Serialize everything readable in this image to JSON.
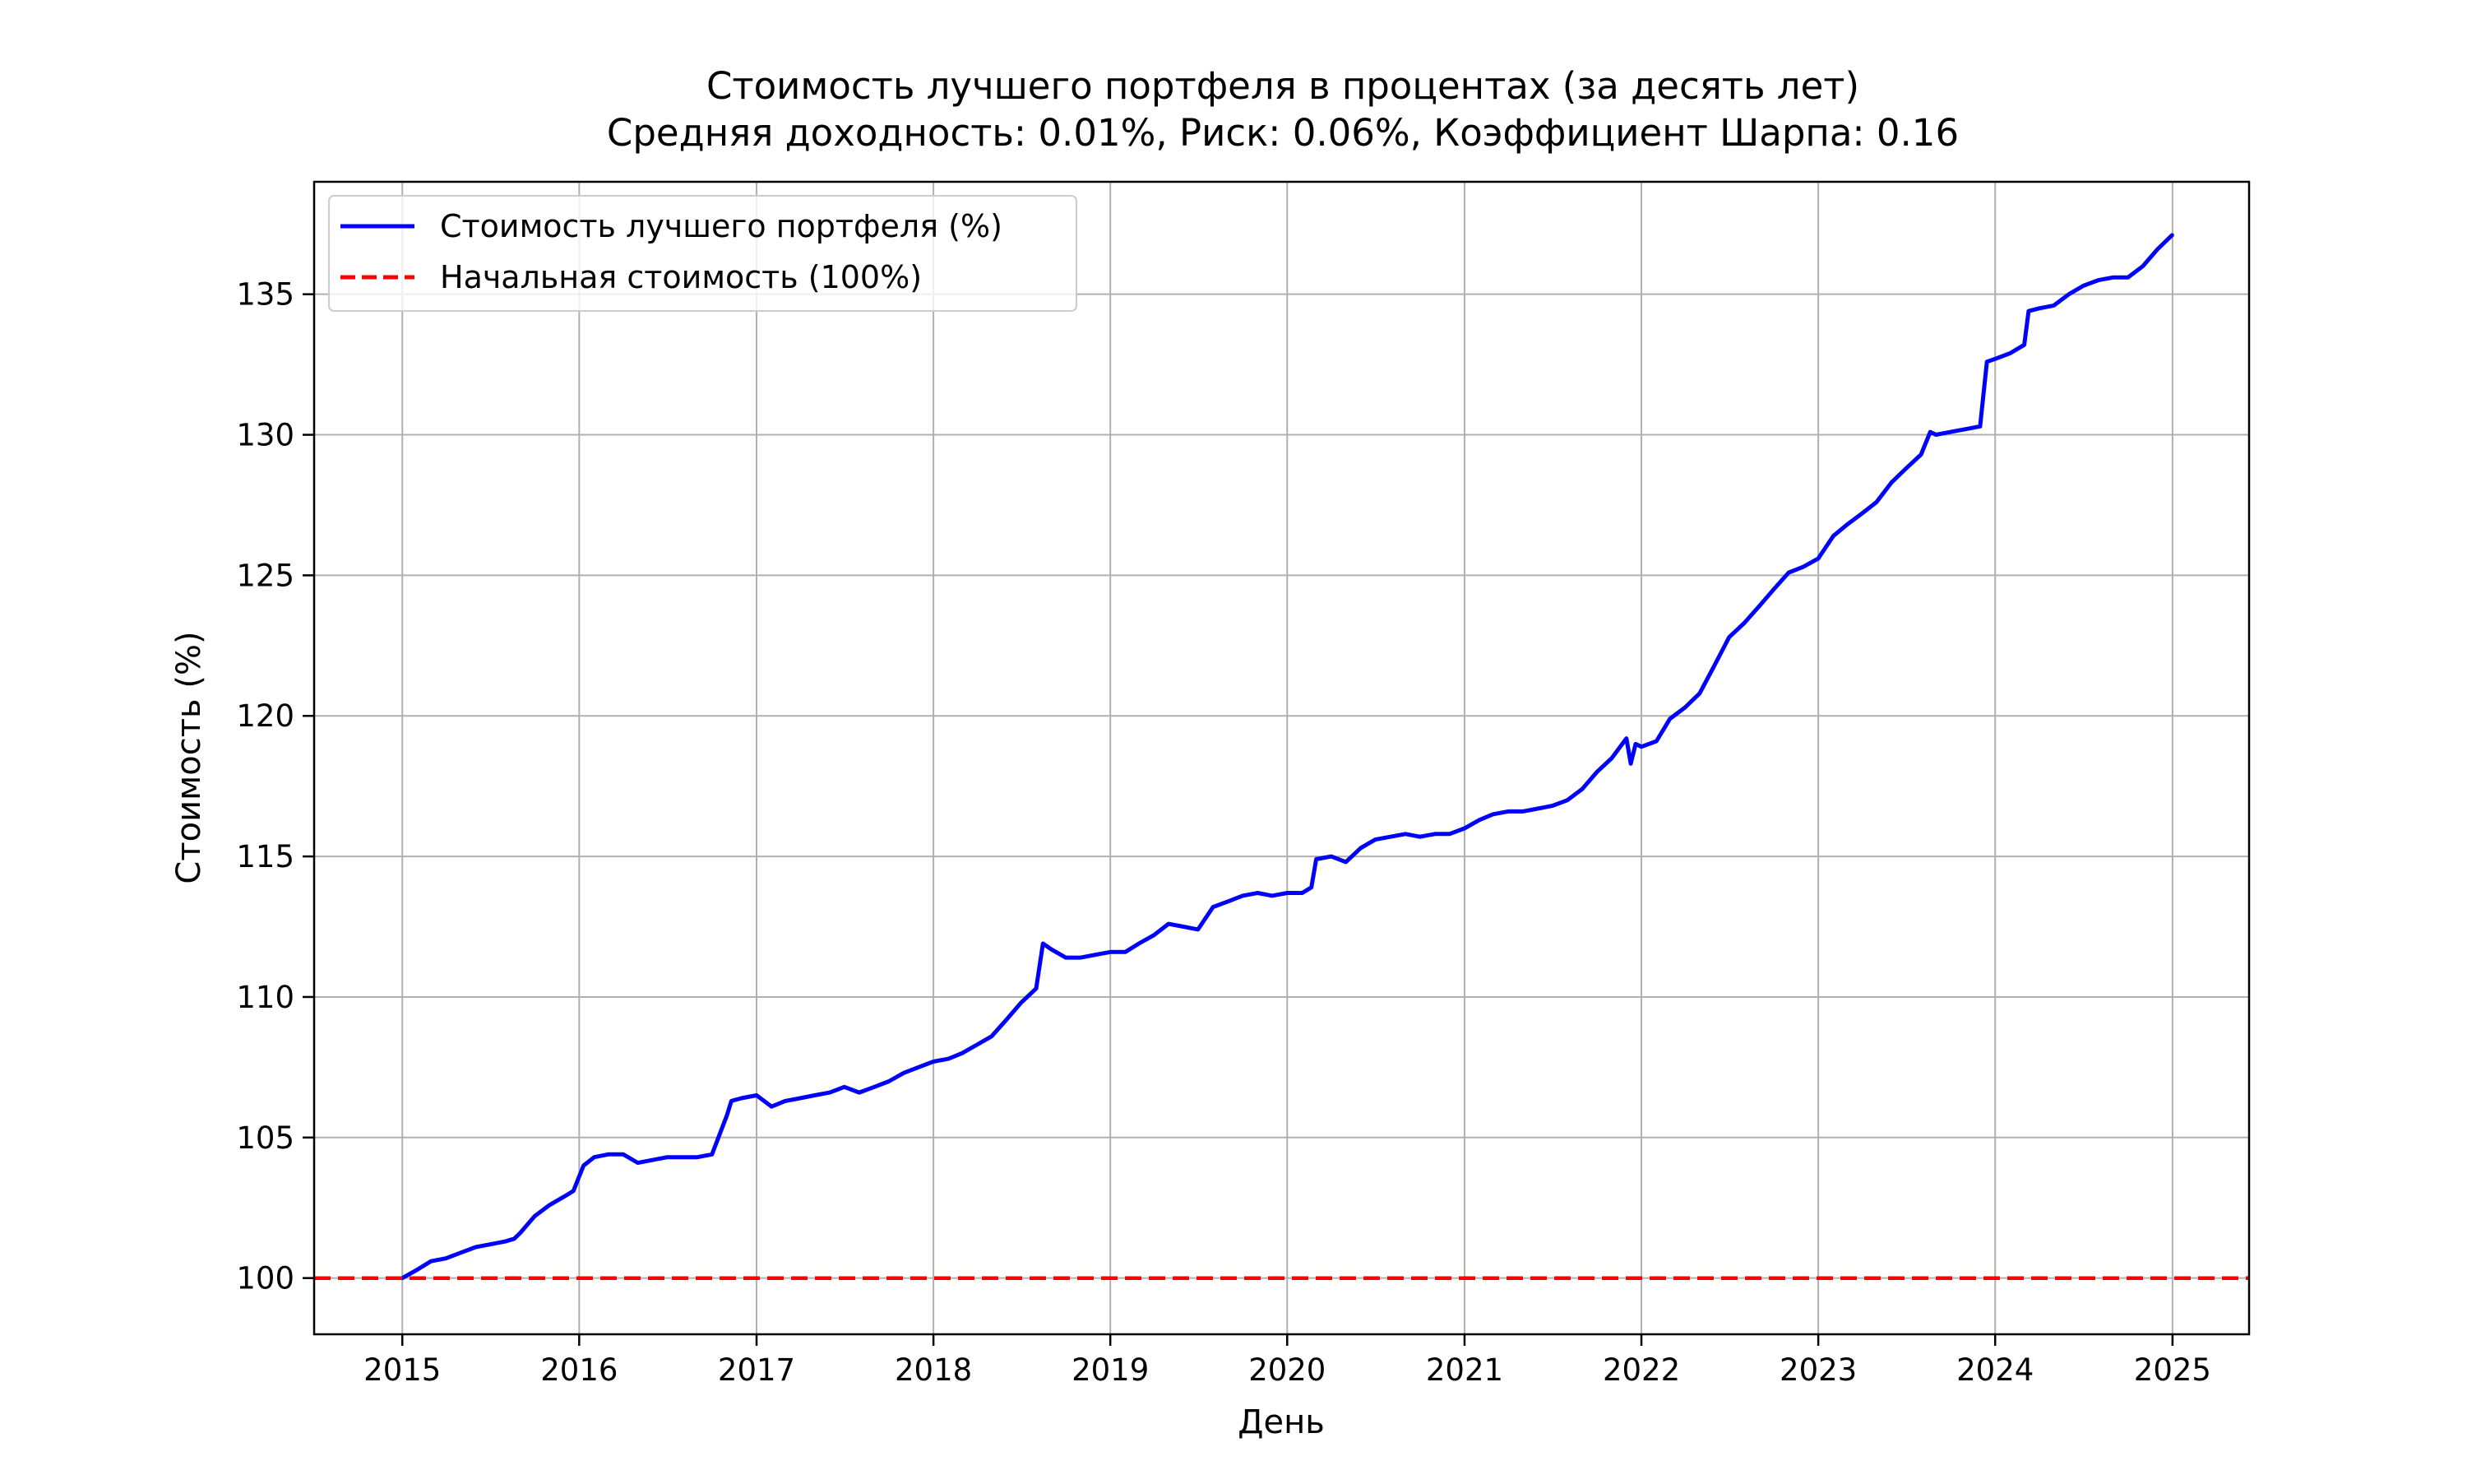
{
  "chart_data": {
    "type": "line",
    "title": "Стоимость лучшего портфеля в процентах (за десять лет)",
    "subtitle": "Средняя доходность: 0.01%, Риск: 0.06%, Коэффициент Шарпа: 0.16",
    "xlabel": "День",
    "ylabel": "Стоимость (%)",
    "x_axis_type": "date",
    "xlim": [
      "2014-07-03",
      "2025-06-08"
    ],
    "ylim": [
      98,
      139
    ],
    "x_ticks": [
      "2015",
      "2016",
      "2017",
      "2018",
      "2019",
      "2020",
      "2021",
      "2022",
      "2023",
      "2024",
      "2025"
    ],
    "y_ticks": [
      100,
      105,
      110,
      115,
      120,
      125,
      130,
      135
    ],
    "grid": true,
    "legend_position": "top-left",
    "series": [
      {
        "name": "Стоимость лучшего портфеля (%)",
        "color": "#0000ff",
        "style": "solid",
        "x": [
          "2015-01-01",
          "2015-02-01",
          "2015-03-01",
          "2015-04-01",
          "2015-05-01",
          "2015-06-01",
          "2015-07-01",
          "2015-08-01",
          "2015-08-20",
          "2015-09-01",
          "2015-10-01",
          "2015-11-01",
          "2015-12-01",
          "2015-12-20",
          "2016-01-10",
          "2016-02-01",
          "2016-03-01",
          "2016-04-01",
          "2016-05-01",
          "2016-06-01",
          "2016-07-01",
          "2016-08-01",
          "2016-09-01",
          "2016-10-01",
          "2016-11-01",
          "2016-11-10",
          "2016-12-01",
          "2017-01-01",
          "2017-02-01",
          "2017-03-01",
          "2017-04-01",
          "2017-05-01",
          "2017-06-01",
          "2017-07-01",
          "2017-08-01",
          "2017-09-01",
          "2017-10-01",
          "2017-11-01",
          "2017-12-01",
          "2018-01-01",
          "2018-02-01",
          "2018-03-01",
          "2018-04-01",
          "2018-05-01",
          "2018-06-01",
          "2018-07-01",
          "2018-08-01",
          "2018-08-15",
          "2018-09-01",
          "2018-10-01",
          "2018-11-01",
          "2018-12-01",
          "2019-01-01",
          "2019-02-01",
          "2019-03-01",
          "2019-04-01",
          "2019-05-01",
          "2019-06-01",
          "2019-07-01",
          "2019-08-01",
          "2019-09-01",
          "2019-10-01",
          "2019-11-01",
          "2019-12-01",
          "2020-01-01",
          "2020-02-01",
          "2020-02-20",
          "2020-03-01",
          "2020-04-01",
          "2020-05-01",
          "2020-06-01",
          "2020-07-01",
          "2020-08-01",
          "2020-09-01",
          "2020-10-01",
          "2020-11-01",
          "2020-12-01",
          "2021-01-01",
          "2021-02-01",
          "2021-03-01",
          "2021-04-01",
          "2021-05-01",
          "2021-06-01",
          "2021-07-01",
          "2021-08-01",
          "2021-09-01",
          "2021-10-01",
          "2021-11-01",
          "2021-12-01",
          "2021-12-10",
          "2021-12-20",
          "2022-01-01",
          "2022-02-01",
          "2022-03-01",
          "2022-04-01",
          "2022-05-01",
          "2022-06-01",
          "2022-07-01",
          "2022-08-01",
          "2022-09-01",
          "2022-10-01",
          "2022-11-01",
          "2022-12-01",
          "2023-01-01",
          "2023-02-01",
          "2023-03-01",
          "2023-04-01",
          "2023-05-01",
          "2023-06-01",
          "2023-07-01",
          "2023-08-01",
          "2023-08-20",
          "2023-09-01",
          "2023-10-01",
          "2023-11-01",
          "2023-12-01",
          "2023-12-15",
          "2024-01-01",
          "2024-02-01",
          "2024-03-01",
          "2024-03-10",
          "2024-04-01",
          "2024-05-01",
          "2024-06-01",
          "2024-07-01",
          "2024-08-01",
          "2024-09-01",
          "2024-10-01",
          "2024-11-01",
          "2024-12-01",
          "2024-12-31"
        ],
        "y": [
          100.0,
          100.3,
          100.6,
          100.7,
          100.9,
          101.1,
          101.2,
          101.3,
          101.4,
          101.6,
          102.2,
          102.6,
          102.9,
          103.1,
          104.0,
          104.3,
          104.4,
          104.4,
          104.1,
          104.2,
          104.3,
          104.3,
          104.3,
          104.4,
          105.8,
          106.3,
          106.4,
          106.5,
          106.1,
          106.3,
          106.4,
          106.5,
          106.6,
          106.8,
          106.6,
          106.8,
          107.0,
          107.3,
          107.5,
          107.7,
          107.8,
          108.0,
          108.3,
          108.6,
          109.2,
          109.8,
          110.3,
          111.9,
          111.7,
          111.4,
          111.4,
          111.5,
          111.6,
          111.6,
          111.9,
          112.2,
          112.6,
          112.5,
          112.4,
          113.2,
          113.4,
          113.6,
          113.7,
          113.6,
          113.7,
          113.7,
          113.9,
          114.9,
          115.0,
          114.8,
          115.3,
          115.6,
          115.7,
          115.8,
          115.7,
          115.8,
          115.8,
          116.0,
          116.3,
          116.5,
          116.6,
          116.6,
          116.7,
          116.8,
          117.0,
          117.4,
          118.0,
          118.5,
          119.2,
          118.3,
          119.0,
          118.9,
          119.1,
          119.9,
          120.3,
          120.8,
          121.8,
          122.8,
          123.3,
          123.9,
          124.5,
          125.1,
          125.3,
          125.6,
          126.4,
          126.8,
          127.2,
          127.6,
          128.3,
          128.8,
          129.3,
          130.1,
          130.0,
          130.1,
          130.2,
          130.3,
          132.6,
          132.7,
          132.9,
          133.2,
          134.4,
          134.5,
          134.6,
          135.0,
          135.3,
          135.5,
          135.6,
          135.6,
          136.0,
          136.6,
          137.1
        ]
      },
      {
        "name": "Начальная стоимость (100%)",
        "color": "#ff0000",
        "style": "dashed",
        "x": [
          "2014-07-03",
          "2025-06-08"
        ],
        "y": [
          100,
          100
        ]
      }
    ]
  }
}
